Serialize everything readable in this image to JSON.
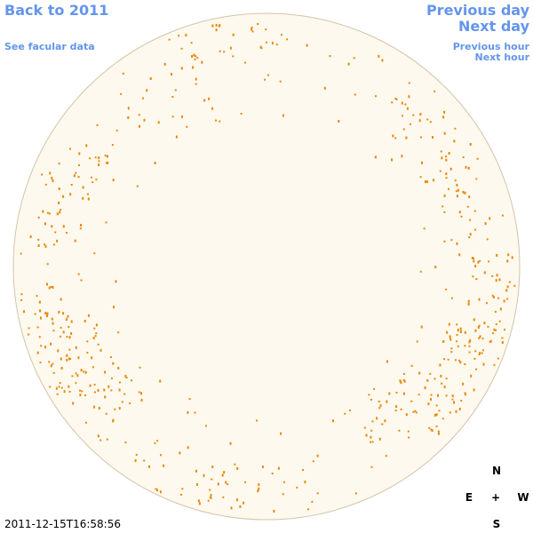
{
  "header": {
    "back_link": "Back to 2011",
    "facular_link": "See facular data",
    "previous_day": "Previous day",
    "next_day": "Next day",
    "previous_hour": "Previous hour",
    "next_hour": "Next hour"
  },
  "compass": {
    "north": "N",
    "east": "E",
    "center": "+",
    "west": "W",
    "south": "S"
  },
  "timestamp": "2011-12-15T16:58:56"
}
